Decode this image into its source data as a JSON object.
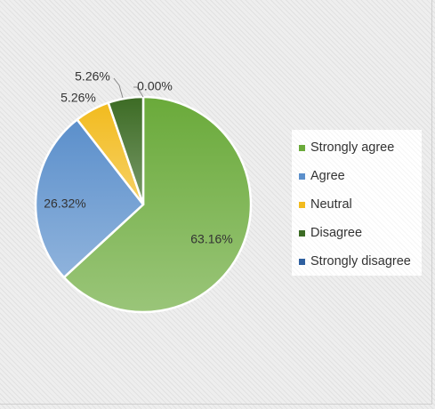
{
  "chart_data": {
    "type": "pie",
    "title": "",
    "categories": [
      "Strongly agree",
      "Agree",
      "Neutral",
      "Disagree",
      "Strongly disagree"
    ],
    "values": [
      63.16,
      26.32,
      5.26,
      5.26,
      0.0
    ],
    "data_labels": [
      "63.16%",
      "26.32%",
      "5.26%",
      "5.26%",
      "0.00%"
    ],
    "colors": [
      "#6aaa3a",
      "#5b8fcb",
      "#f2bb1e",
      "#3c6b24",
      "#2e5f9f"
    ],
    "legend": {
      "position": "right",
      "entries": [
        "Strongly agree",
        "Agree",
        "Neutral",
        "Disagree",
        "Strongly disagree"
      ]
    },
    "start_angle_deg": 0,
    "direction": "clockwise"
  }
}
